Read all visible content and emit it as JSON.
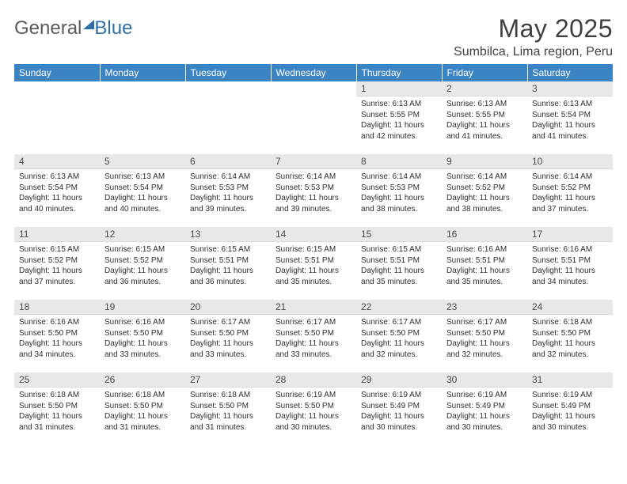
{
  "brand": {
    "word1": "General",
    "word2": "Blue"
  },
  "title": "May 2025",
  "location": "Sumbilca, Lima region, Peru",
  "colors": {
    "header_bg": "#3b84c4",
    "header_text": "#ffffff",
    "daynum_bg": "#e7e8ea",
    "text": "#333333",
    "brand_gray": "#5a5a5a",
    "brand_blue": "#2f6fa8"
  },
  "weekdays": [
    "Sunday",
    "Monday",
    "Tuesday",
    "Wednesday",
    "Thursday",
    "Friday",
    "Saturday"
  ],
  "first_weekday_index": 4,
  "days": [
    {
      "n": "1",
      "sr": "6:13 AM",
      "ss": "5:55 PM",
      "dl": "11 hours and 42 minutes."
    },
    {
      "n": "2",
      "sr": "6:13 AM",
      "ss": "5:55 PM",
      "dl": "11 hours and 41 minutes."
    },
    {
      "n": "3",
      "sr": "6:13 AM",
      "ss": "5:54 PM",
      "dl": "11 hours and 41 minutes."
    },
    {
      "n": "4",
      "sr": "6:13 AM",
      "ss": "5:54 PM",
      "dl": "11 hours and 40 minutes."
    },
    {
      "n": "5",
      "sr": "6:13 AM",
      "ss": "5:54 PM",
      "dl": "11 hours and 40 minutes."
    },
    {
      "n": "6",
      "sr": "6:14 AM",
      "ss": "5:53 PM",
      "dl": "11 hours and 39 minutes."
    },
    {
      "n": "7",
      "sr": "6:14 AM",
      "ss": "5:53 PM",
      "dl": "11 hours and 39 minutes."
    },
    {
      "n": "8",
      "sr": "6:14 AM",
      "ss": "5:53 PM",
      "dl": "11 hours and 38 minutes."
    },
    {
      "n": "9",
      "sr": "6:14 AM",
      "ss": "5:52 PM",
      "dl": "11 hours and 38 minutes."
    },
    {
      "n": "10",
      "sr": "6:14 AM",
      "ss": "5:52 PM",
      "dl": "11 hours and 37 minutes."
    },
    {
      "n": "11",
      "sr": "6:15 AM",
      "ss": "5:52 PM",
      "dl": "11 hours and 37 minutes."
    },
    {
      "n": "12",
      "sr": "6:15 AM",
      "ss": "5:52 PM",
      "dl": "11 hours and 36 minutes."
    },
    {
      "n": "13",
      "sr": "6:15 AM",
      "ss": "5:51 PM",
      "dl": "11 hours and 36 minutes."
    },
    {
      "n": "14",
      "sr": "6:15 AM",
      "ss": "5:51 PM",
      "dl": "11 hours and 35 minutes."
    },
    {
      "n": "15",
      "sr": "6:15 AM",
      "ss": "5:51 PM",
      "dl": "11 hours and 35 minutes."
    },
    {
      "n": "16",
      "sr": "6:16 AM",
      "ss": "5:51 PM",
      "dl": "11 hours and 35 minutes."
    },
    {
      "n": "17",
      "sr": "6:16 AM",
      "ss": "5:51 PM",
      "dl": "11 hours and 34 minutes."
    },
    {
      "n": "18",
      "sr": "6:16 AM",
      "ss": "5:50 PM",
      "dl": "11 hours and 34 minutes."
    },
    {
      "n": "19",
      "sr": "6:16 AM",
      "ss": "5:50 PM",
      "dl": "11 hours and 33 minutes."
    },
    {
      "n": "20",
      "sr": "6:17 AM",
      "ss": "5:50 PM",
      "dl": "11 hours and 33 minutes."
    },
    {
      "n": "21",
      "sr": "6:17 AM",
      "ss": "5:50 PM",
      "dl": "11 hours and 33 minutes."
    },
    {
      "n": "22",
      "sr": "6:17 AM",
      "ss": "5:50 PM",
      "dl": "11 hours and 32 minutes."
    },
    {
      "n": "23",
      "sr": "6:17 AM",
      "ss": "5:50 PM",
      "dl": "11 hours and 32 minutes."
    },
    {
      "n": "24",
      "sr": "6:18 AM",
      "ss": "5:50 PM",
      "dl": "11 hours and 32 minutes."
    },
    {
      "n": "25",
      "sr": "6:18 AM",
      "ss": "5:50 PM",
      "dl": "11 hours and 31 minutes."
    },
    {
      "n": "26",
      "sr": "6:18 AM",
      "ss": "5:50 PM",
      "dl": "11 hours and 31 minutes."
    },
    {
      "n": "27",
      "sr": "6:18 AM",
      "ss": "5:50 PM",
      "dl": "11 hours and 31 minutes."
    },
    {
      "n": "28",
      "sr": "6:19 AM",
      "ss": "5:50 PM",
      "dl": "11 hours and 30 minutes."
    },
    {
      "n": "29",
      "sr": "6:19 AM",
      "ss": "5:49 PM",
      "dl": "11 hours and 30 minutes."
    },
    {
      "n": "30",
      "sr": "6:19 AM",
      "ss": "5:49 PM",
      "dl": "11 hours and 30 minutes."
    },
    {
      "n": "31",
      "sr": "6:19 AM",
      "ss": "5:49 PM",
      "dl": "11 hours and 30 minutes."
    }
  ],
  "labels": {
    "sunrise": "Sunrise:",
    "sunset": "Sunset:",
    "daylight": "Daylight:"
  }
}
